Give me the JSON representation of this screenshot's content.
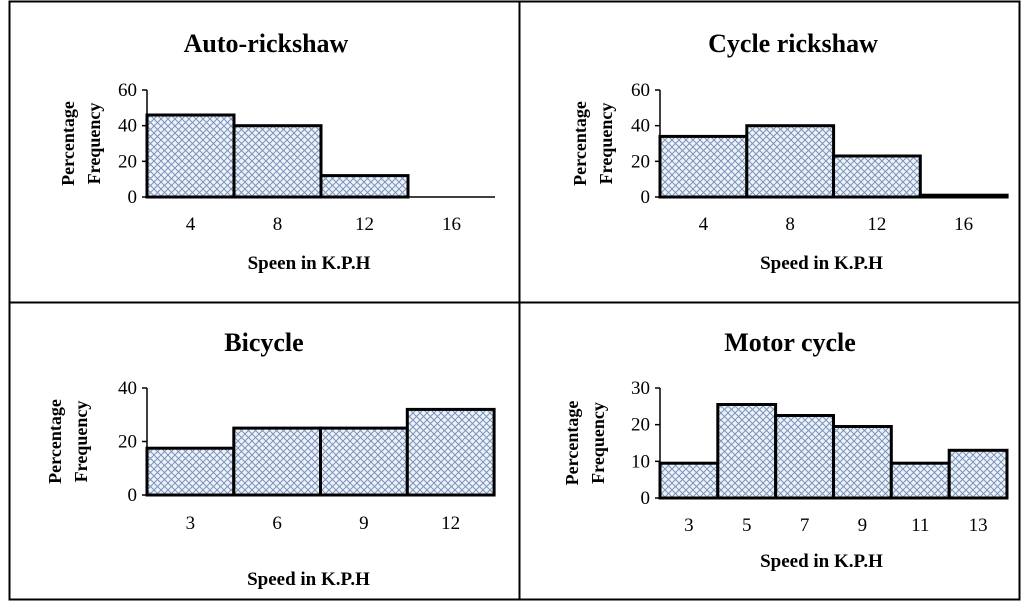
{
  "colors": {
    "bar_fill": "#eef3fb",
    "hatch": "#7b93b8",
    "bar_stroke": "#000000",
    "frame": "#000000"
  },
  "chart_data": [
    {
      "type": "bar",
      "title": "Auto-rickshaw",
      "xlabel": "Speen in K.P.H",
      "ylabel": [
        "Percentage",
        "Frequency"
      ],
      "categories": [
        "4",
        "8",
        "12",
        "16"
      ],
      "values": [
        46,
        40,
        12,
        0
      ],
      "ylim": [
        0,
        60
      ],
      "yticks": [
        0,
        20,
        40,
        60
      ],
      "grid": false,
      "legend": "none"
    },
    {
      "type": "bar",
      "title": "Cycle rickshaw",
      "xlabel": "Speed in K.P.H",
      "ylabel": [
        "Percentage",
        "Frequency"
      ],
      "categories": [
        "4",
        "8",
        "12",
        "16"
      ],
      "values": [
        34,
        40,
        23,
        1
      ],
      "ylim": [
        0,
        60
      ],
      "yticks": [
        0,
        20,
        40,
        60
      ],
      "grid": false,
      "legend": "none"
    },
    {
      "type": "bar",
      "title": "Bicycle",
      "xlabel": "Speed in K.P.H",
      "ylabel": [
        "Percentage",
        "Frequency"
      ],
      "categories": [
        "3",
        "6",
        "9",
        "12"
      ],
      "values": [
        17.5,
        25,
        25,
        32
      ],
      "ylim": [
        0,
        40
      ],
      "yticks": [
        0,
        20,
        40
      ],
      "grid": false,
      "legend": "none"
    },
    {
      "type": "bar",
      "title": "Motor cycle",
      "xlabel": "Speed in K.P.H",
      "ylabel": [
        "Percentage",
        "Frequency"
      ],
      "categories": [
        "3",
        "5",
        "7",
        "9",
        "11",
        "13"
      ],
      "values": [
        9.5,
        25.5,
        22.5,
        19.5,
        9.5,
        13
      ],
      "ylim": [
        0,
        30
      ],
      "yticks": [
        0,
        10,
        20,
        30
      ],
      "grid": false,
      "legend": "none"
    }
  ]
}
